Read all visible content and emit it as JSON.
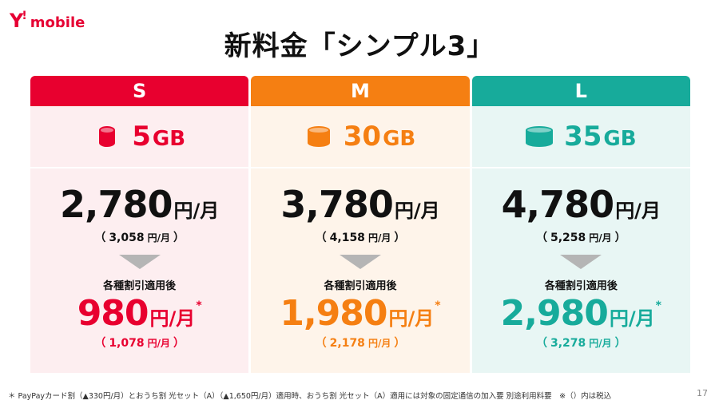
{
  "logo": {
    "y": "Y",
    "mark": "!",
    "word": "mobile"
  },
  "title": "新料金「シンプル3」",
  "plans": [
    {
      "name": "S",
      "capacity": "5",
      "unit": "GB",
      "price": "2,780",
      "price_unit": "円/月",
      "tax_open": "（",
      "tax_price": "3,058",
      "tax_unit": "円/月",
      "tax_close": "）",
      "after_label": "各種割引適用後",
      "final_price": "980",
      "final_unit": "円/月",
      "final_star": "*",
      "final_tax_open": "（",
      "final_tax_price": "1,078",
      "final_tax_unit": "円/月",
      "final_tax_close": "）",
      "colors": {
        "head": "#e8002f",
        "bg": "#fdeef0",
        "accent": "#e8002f",
        "icon": "#e8002f"
      }
    },
    {
      "name": "M",
      "capacity": "30",
      "unit": "GB",
      "price": "3,780",
      "price_unit": "円/月",
      "tax_open": "（",
      "tax_price": "4,158",
      "tax_unit": "円/月",
      "tax_close": "）",
      "after_label": "各種割引適用後",
      "final_price": "1,980",
      "final_unit": "円/月",
      "final_star": "*",
      "final_tax_open": "（",
      "final_tax_price": "2,178",
      "final_tax_unit": "円/月",
      "final_tax_close": "）",
      "colors": {
        "head": "#f57f12",
        "bg": "#fef4ea",
        "accent": "#f57f12",
        "icon": "#f57f12"
      }
    },
    {
      "name": "L",
      "capacity": "35",
      "unit": "GB",
      "price": "4,780",
      "price_unit": "円/月",
      "tax_open": "（",
      "tax_price": "5,258",
      "tax_unit": "円/月",
      "tax_close": "）",
      "after_label": "各種割引適用後",
      "final_price": "2,980",
      "final_unit": "円/月",
      "final_star": "*",
      "final_tax_open": "（",
      "final_tax_price": "3,278",
      "final_tax_unit": "円/月",
      "final_tax_close": "）",
      "colors": {
        "head": "#17ab9b",
        "bg": "#e8f6f4",
        "accent": "#17ab9b",
        "icon": "#17ab9b"
      }
    }
  ],
  "footnote": "＊ PayPayカード割（▲330円/月）とおうち割 光セット（A）（▲1,650円/月）適用時、おうち割 光セット（A）適用には対象の固定通信の加入要 別途利用料要　※（）内は税込",
  "page_number": "17"
}
